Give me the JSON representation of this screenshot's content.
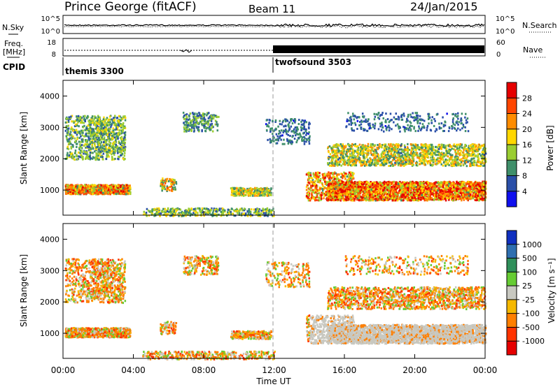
{
  "header": {
    "station": "Prince George (fitACF)",
    "beam": "Beam 11",
    "date": "24/Jan/2015"
  },
  "top_panel": {
    "left_label": "N.Sky",
    "right_label": "N.Search",
    "left_ticks": [
      "10^5",
      "10^0"
    ],
    "right_ticks": [
      "10^5",
      "10^0"
    ]
  },
  "freq_panel": {
    "left_label_1": "Freq.",
    "left_label_2": "[MHz]",
    "right_label": "Nave",
    "left_ticks": [
      "18",
      "8"
    ],
    "right_ticks": [
      "60",
      "0"
    ]
  },
  "cpid": {
    "label": "CPID",
    "modes": [
      {
        "name": "themis 3300",
        "start": 0
      },
      {
        "name": "twofsound 3503",
        "start": 12
      }
    ]
  },
  "power_panel": {
    "ylabel": "Slant Range [km]",
    "yticks": [
      "1000",
      "2000",
      "3000",
      "4000"
    ],
    "colorbar_label": "Power [dB]",
    "colorbar_ticks": [
      "4",
      "8",
      "12",
      "16",
      "20",
      "24",
      "28"
    ],
    "colors": [
      "#1010ee",
      "#2a4fa8",
      "#3f8f6a",
      "#9acd32",
      "#ffd700",
      "#ff8c00",
      "#ff4500",
      "#e60000"
    ]
  },
  "velocity_panel": {
    "ylabel": "Slant Range [km]",
    "yticks": [
      "1000",
      "2000",
      "3000",
      "4000"
    ],
    "colorbar_label": "Velocity [m s⁻¹]",
    "colorbar_ticks": [
      "1000",
      "500",
      "100",
      "25",
      "-25",
      "-100",
      "-500",
      "-1000"
    ],
    "colors": [
      "#1030c0",
      "#2f6fb0",
      "#2f8f5a",
      "#66cc33",
      "#c8c8c0",
      "#f5b800",
      "#ff7f00",
      "#ff3300",
      "#e60000"
    ]
  },
  "x_axis": {
    "label": "Time UT",
    "ticks": [
      "00:00",
      "04:00",
      "08:00",
      "12:00",
      "16:00",
      "20:00",
      "00:00"
    ]
  }
}
